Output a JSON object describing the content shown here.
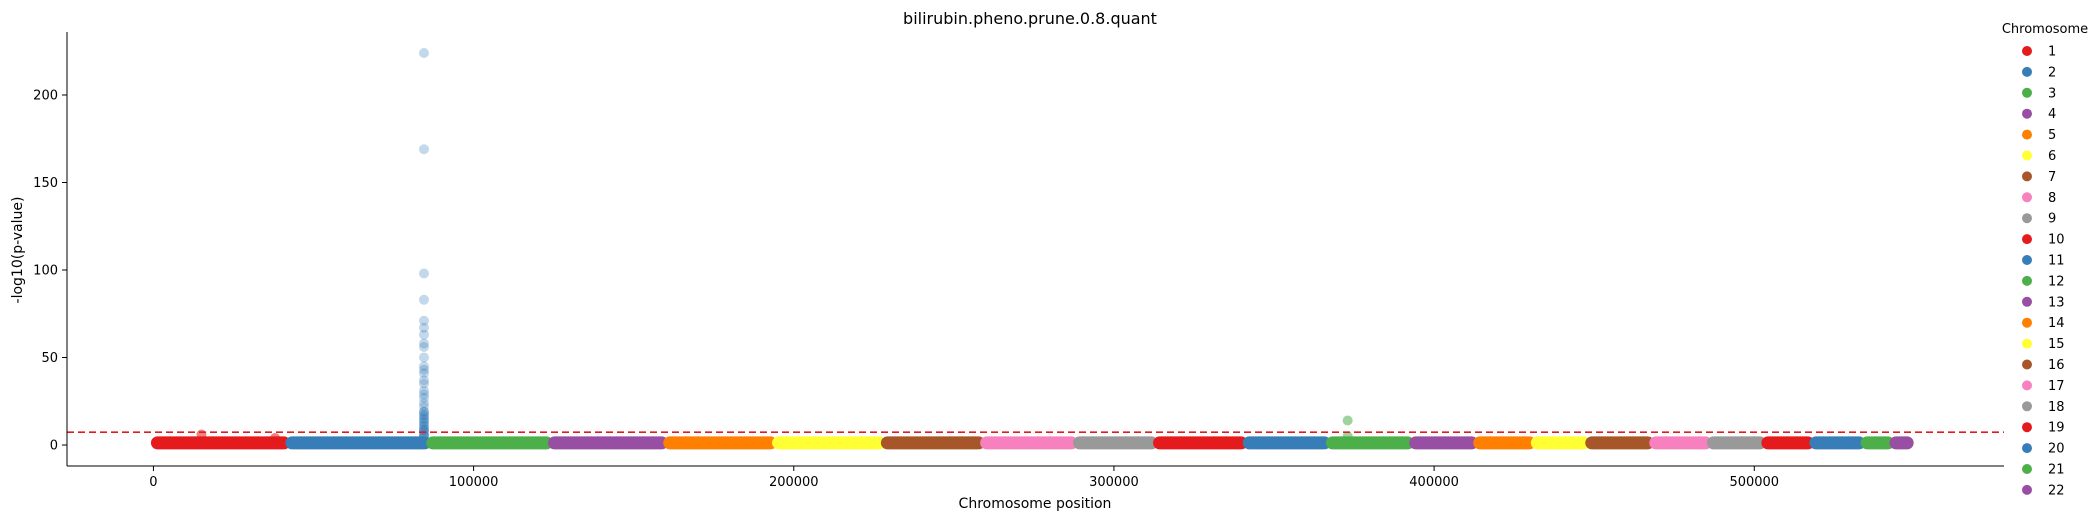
{
  "chart_data": {
    "type": "scatter",
    "title": "bilirubin.pheno.prune.0.8.quant",
    "xlabel": "Chromosome position",
    "ylabel": "-log10(p-value)",
    "xlim": [
      -27000,
      578000
    ],
    "ylim": [
      -12,
      236
    ],
    "xticks": [
      0,
      100000,
      200000,
      300000,
      400000,
      500000
    ],
    "yticks": [
      0,
      50,
      100,
      150,
      200
    ],
    "threshold": {
      "value": 7.3,
      "color": "#e41a1c",
      "style": "dashed"
    },
    "legend": {
      "title": "Chromosome",
      "placement": "outside-right"
    },
    "series": [
      {
        "name": "1",
        "color": "#e41a1c",
        "range": [
          0,
          42000
        ]
      },
      {
        "name": "2",
        "color": "#377eb8",
        "range": [
          42000,
          86000
        ]
      },
      {
        "name": "3",
        "color": "#4daf4a",
        "range": [
          86000,
          124000
        ]
      },
      {
        "name": "4",
        "color": "#984ea3",
        "range": [
          124000,
          160000
        ]
      },
      {
        "name": "5",
        "color": "#ff7f00",
        "range": [
          160000,
          194000
        ]
      },
      {
        "name": "6",
        "color": "#ffff33",
        "range": [
          194000,
          228000
        ]
      },
      {
        "name": "7",
        "color": "#a65628",
        "range": [
          228000,
          259000
        ]
      },
      {
        "name": "8",
        "color": "#f781bf",
        "range": [
          259000,
          288000
        ]
      },
      {
        "name": "9",
        "color": "#999999",
        "range": [
          288000,
          313000
        ]
      },
      {
        "name": "10",
        "color": "#e41a1c",
        "range": [
          313000,
          341000
        ]
      },
      {
        "name": "11",
        "color": "#377eb8",
        "range": [
          341000,
          367000
        ]
      },
      {
        "name": "12",
        "color": "#4daf4a",
        "range": [
          367000,
          393000
        ]
      },
      {
        "name": "13",
        "color": "#984ea3",
        "range": [
          393000,
          413000
        ]
      },
      {
        "name": "14",
        "color": "#ff7f00",
        "range": [
          413000,
          431000
        ]
      },
      {
        "name": "15",
        "color": "#ffff33",
        "range": [
          431000,
          448000
        ]
      },
      {
        "name": "16",
        "color": "#a65628",
        "range": [
          448000,
          468000
        ]
      },
      {
        "name": "17",
        "color": "#f781bf",
        "range": [
          468000,
          486000
        ]
      },
      {
        "name": "18",
        "color": "#999999",
        "range": [
          486000,
          503000
        ]
      },
      {
        "name": "19",
        "color": "#e41a1c",
        "range": [
          503000,
          518000
        ]
      },
      {
        "name": "20",
        "color": "#377eb8",
        "range": [
          518000,
          534000
        ]
      },
      {
        "name": "21",
        "color": "#4daf4a",
        "range": [
          534000,
          543000
        ]
      },
      {
        "name": "22",
        "color": "#984ea3",
        "range": [
          543000,
          549000
        ]
      }
    ],
    "points": [
      {
        "chrom": "1",
        "x": 15000,
        "y": 6
      },
      {
        "chrom": "1",
        "x": 38000,
        "y": 4
      },
      {
        "chrom": "2",
        "x": 84500,
        "y": 224
      },
      {
        "chrom": "2",
        "x": 84500,
        "y": 169
      },
      {
        "chrom": "2",
        "x": 84500,
        "y": 98
      },
      {
        "chrom": "2",
        "x": 84500,
        "y": 83
      },
      {
        "chrom": "2",
        "x": 84500,
        "y": 71
      },
      {
        "chrom": "2",
        "x": 84500,
        "y": 67
      },
      {
        "chrom": "2",
        "x": 84500,
        "y": 63
      },
      {
        "chrom": "2",
        "x": 84500,
        "y": 58
      },
      {
        "chrom": "2",
        "x": 84500,
        "y": 56
      },
      {
        "chrom": "2",
        "x": 84500,
        "y": 50
      },
      {
        "chrom": "2",
        "x": 84500,
        "y": 45
      },
      {
        "chrom": "2",
        "x": 84500,
        "y": 43
      },
      {
        "chrom": "2",
        "x": 84500,
        "y": 41
      },
      {
        "chrom": "2",
        "x": 84500,
        "y": 37
      },
      {
        "chrom": "2",
        "x": 84500,
        "y": 35
      },
      {
        "chrom": "2",
        "x": 84500,
        "y": 31
      },
      {
        "chrom": "2",
        "x": 84500,
        "y": 29
      },
      {
        "chrom": "2",
        "x": 84500,
        "y": 27
      },
      {
        "chrom": "2",
        "x": 84500,
        "y": 24
      },
      {
        "chrom": "2",
        "x": 84500,
        "y": 22
      },
      {
        "chrom": "2",
        "x": 84500,
        "y": 19
      },
      {
        "chrom": "2",
        "x": 84500,
        "y": 17
      },
      {
        "chrom": "2",
        "x": 84500,
        "y": 15
      },
      {
        "chrom": "2",
        "x": 84500,
        "y": 13
      },
      {
        "chrom": "2",
        "x": 84500,
        "y": 11
      },
      {
        "chrom": "2",
        "x": 84500,
        "y": 9
      },
      {
        "chrom": "2",
        "x": 84500,
        "y": 8
      },
      {
        "chrom": "2",
        "x": 84500,
        "y": 6
      },
      {
        "chrom": "2",
        "x": 84500,
        "y": 5
      },
      {
        "chrom": "12",
        "x": 373000,
        "y": 14
      },
      {
        "chrom": "12",
        "x": 373000,
        "y": 5
      }
    ]
  }
}
